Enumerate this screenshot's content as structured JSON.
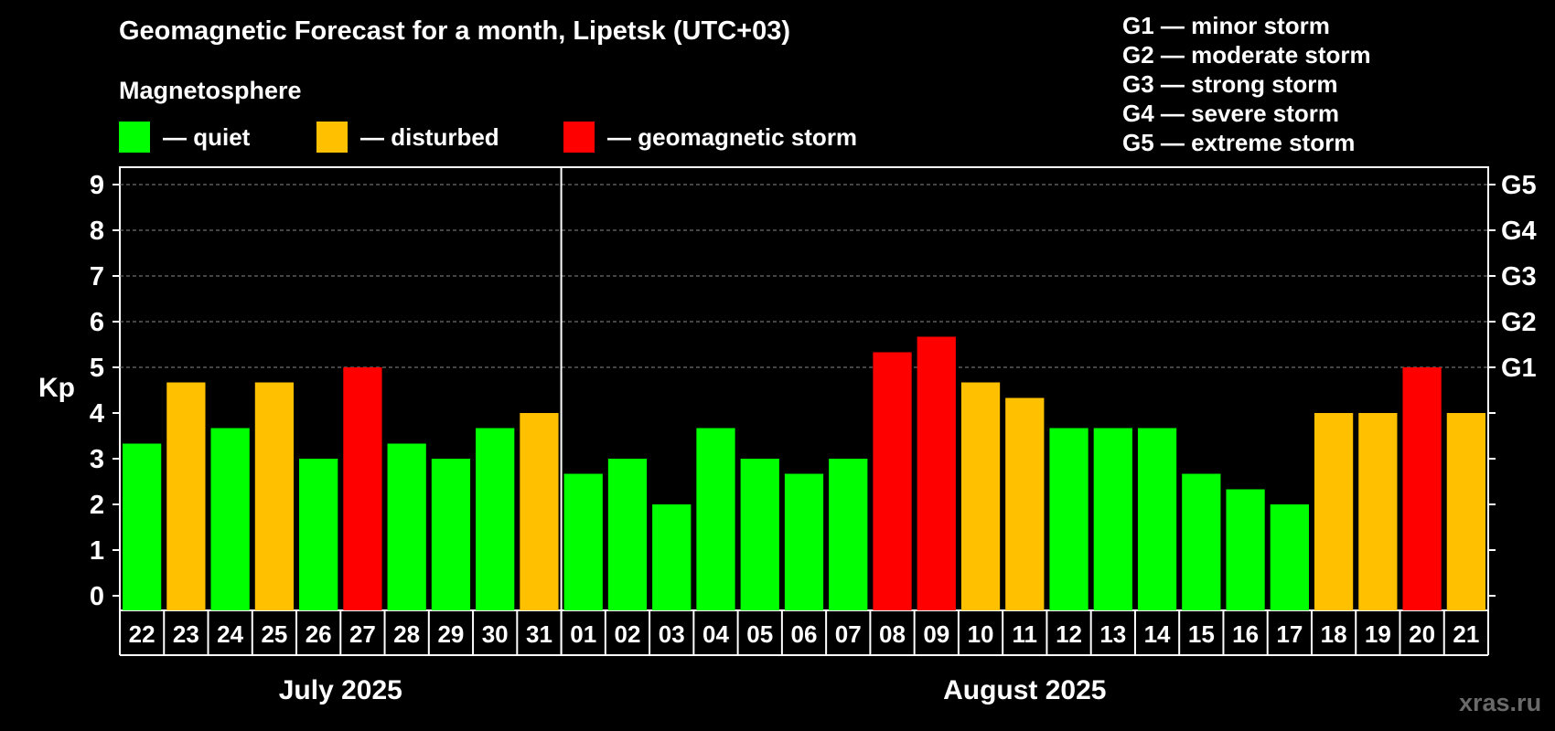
{
  "header": {
    "title": "Geomagnetic Forecast for a month, Lipetsk (UTC+03)",
    "subtitle": "Magnetosphere"
  },
  "legend": [
    {
      "label": "— quiet",
      "color": "#00ff00"
    },
    {
      "label": "— disturbed",
      "color": "#ffc000"
    },
    {
      "label": "— geomagnetic storm",
      "color": "#ff0000"
    }
  ],
  "storm_scale": [
    "G1 — minor storm",
    "G2 — moderate storm",
    "G3 — strong storm",
    "G4 — severe storm",
    "G5 — extreme storm"
  ],
  "watermark": "xras.ru",
  "chart_data": {
    "type": "bar",
    "ylabel": "Kp",
    "ylim": [
      0,
      9
    ],
    "yticks": [
      "0",
      "1",
      "2",
      "3",
      "4",
      "5",
      "6",
      "7",
      "8",
      "9"
    ],
    "right_ticks": [
      {
        "kp": 5,
        "label": "G1"
      },
      {
        "kp": 6,
        "label": "G2"
      },
      {
        "kp": 7,
        "label": "G3"
      },
      {
        "kp": 8,
        "label": "G4"
      },
      {
        "kp": 9,
        "label": "G5"
      }
    ],
    "grid": "dashed horizontal at Kp 5-9",
    "categories": [
      "22",
      "23",
      "24",
      "25",
      "26",
      "27",
      "28",
      "29",
      "30",
      "31",
      "01",
      "02",
      "03",
      "04",
      "05",
      "06",
      "07",
      "08",
      "09",
      "10",
      "11",
      "12",
      "13",
      "14",
      "15",
      "16",
      "17",
      "18",
      "19",
      "20",
      "21"
    ],
    "values": [
      3.33,
      4.67,
      3.67,
      4.67,
      3.0,
      5.0,
      3.33,
      3.0,
      3.67,
      4.0,
      2.67,
      3.0,
      2.0,
      3.67,
      3.0,
      2.67,
      3.0,
      5.33,
      5.67,
      4.67,
      4.33,
      3.67,
      3.67,
      3.67,
      2.67,
      2.33,
      2.0,
      4.0,
      4.0,
      5.0,
      4.0
    ],
    "colors": [
      "#00ff00",
      "#ffc000",
      "#00ff00",
      "#ffc000",
      "#00ff00",
      "#ff0000",
      "#00ff00",
      "#00ff00",
      "#00ff00",
      "#ffc000",
      "#00ff00",
      "#00ff00",
      "#00ff00",
      "#00ff00",
      "#00ff00",
      "#00ff00",
      "#00ff00",
      "#ff0000",
      "#ff0000",
      "#ffc000",
      "#ffc000",
      "#00ff00",
      "#00ff00",
      "#00ff00",
      "#00ff00",
      "#00ff00",
      "#00ff00",
      "#ffc000",
      "#ffc000",
      "#ff0000",
      "#ffc000"
    ],
    "months": [
      {
        "label": "July 2025",
        "start": 0,
        "count": 10
      },
      {
        "label": "August 2025",
        "start": 10,
        "count": 21
      }
    ]
  }
}
